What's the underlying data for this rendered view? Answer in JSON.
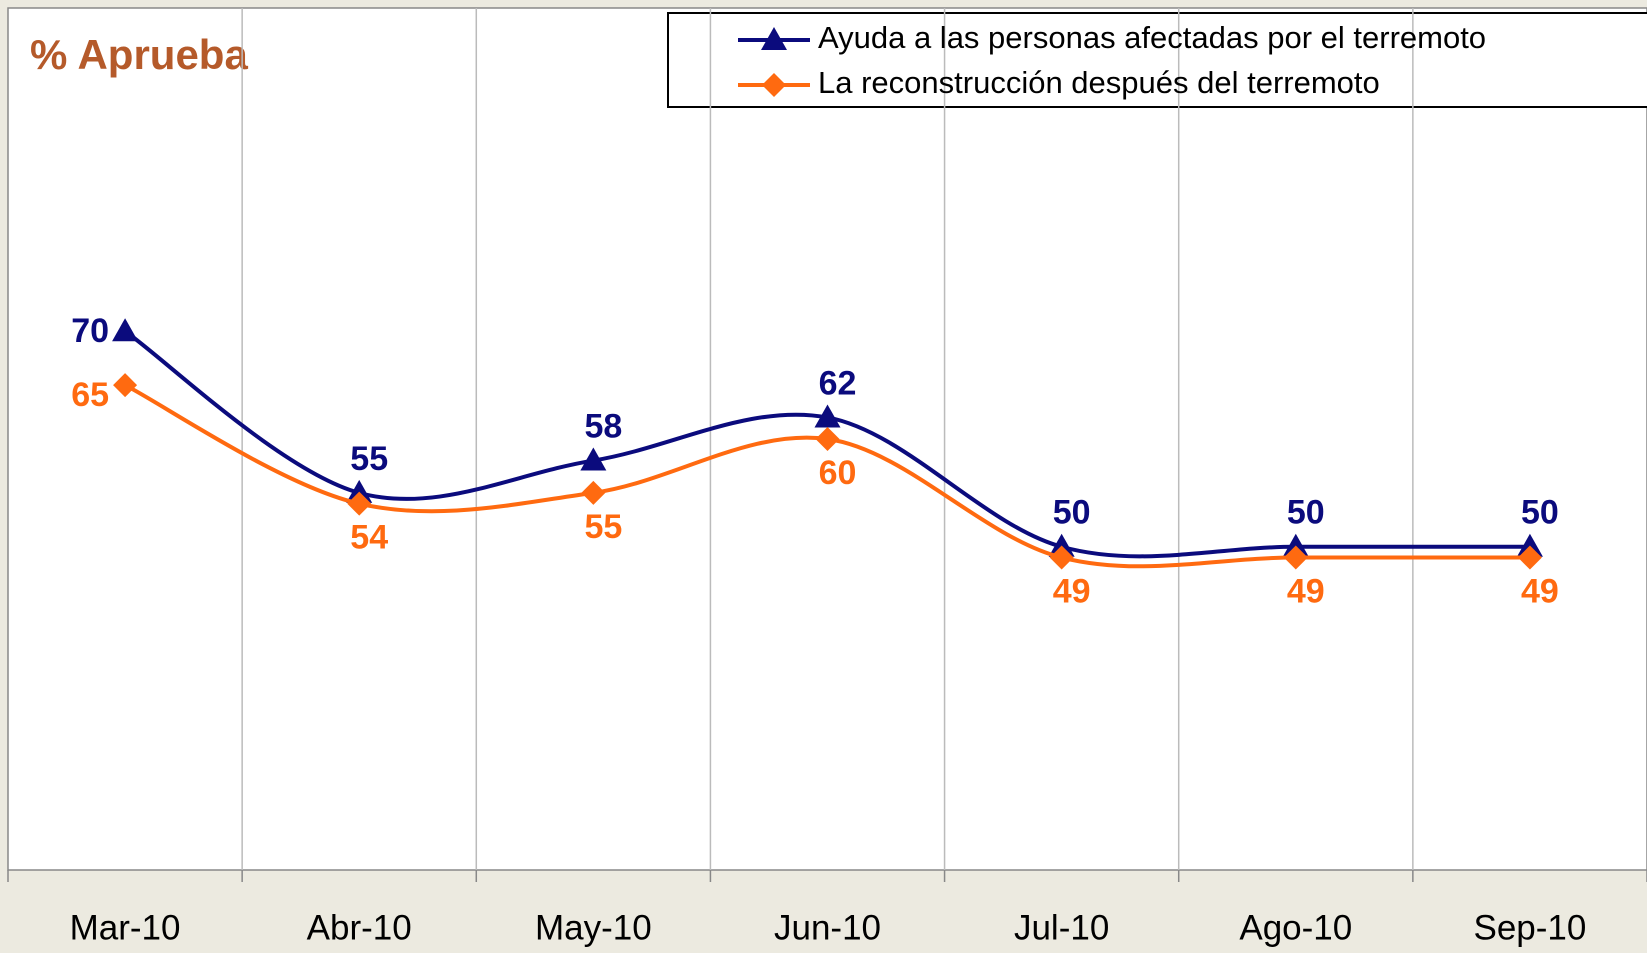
{
  "chart_data": {
    "type": "line",
    "title": "% Aprueba",
    "categories": [
      "Mar-10",
      "Abr-10",
      "May-10",
      "Jun-10",
      "Jul-10",
      "Ago-10",
      "Sep-10"
    ],
    "series": [
      {
        "name": "Ayuda a las personas afectadas por el terremoto",
        "color": "#0b0b7d",
        "marker": "triangle",
        "values": [
          70,
          55,
          58,
          62,
          50,
          50,
          50
        ]
      },
      {
        "name": "La reconstrucción después del terremoto",
        "color": "#ff6a10",
        "marker": "diamond",
        "values": [
          65,
          54,
          55,
          60,
          49,
          49,
          49
        ]
      }
    ],
    "ylim": [
      20,
      100
    ],
    "grid": "vertical"
  }
}
